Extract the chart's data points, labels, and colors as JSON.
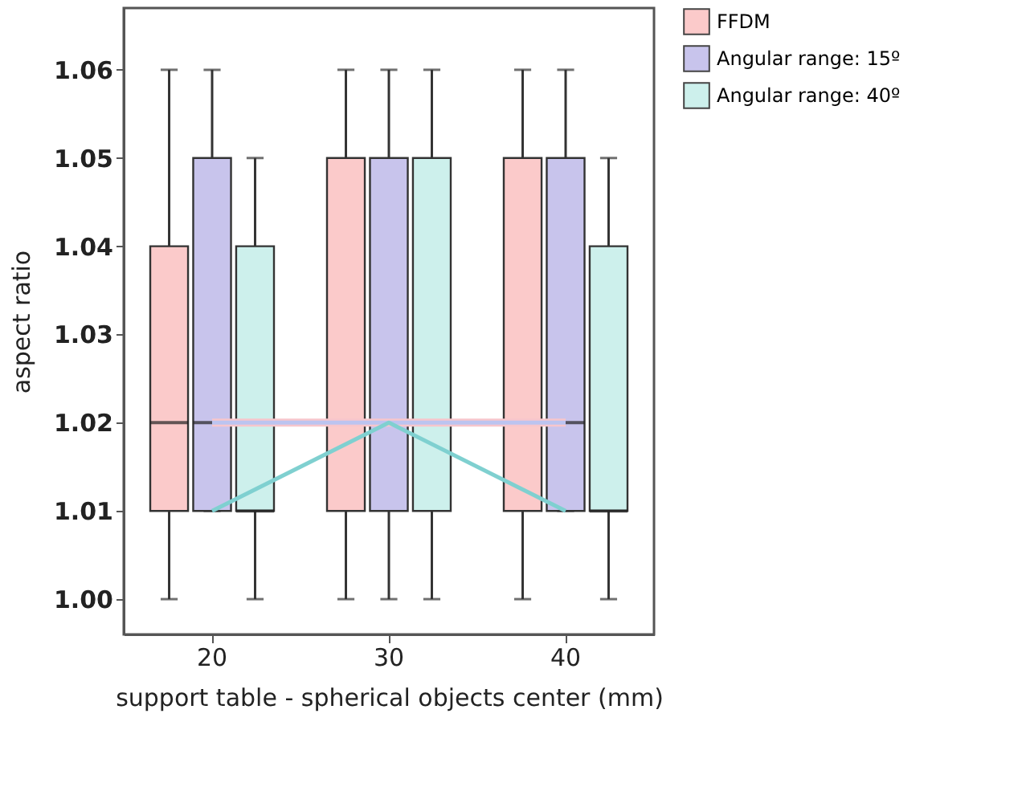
{
  "chart_data": {
    "type": "box",
    "xlabel": "support table - spherical objects center (mm)",
    "ylabel": "aspect ratio",
    "categories": [
      "20",
      "30",
      "40"
    ],
    "ylim": [
      0.996,
      1.067
    ],
    "yticks": [
      {
        "value": 1.0,
        "label": "1.00"
      },
      {
        "value": 1.01,
        "label": "1.01"
      },
      {
        "value": 1.02,
        "label": "1.02"
      },
      {
        "value": 1.03,
        "label": "1.03"
      },
      {
        "value": 1.04,
        "label": "1.04"
      },
      {
        "value": 1.05,
        "label": "1.05"
      },
      {
        "value": 1.06,
        "label": "1.06"
      }
    ],
    "grid": false,
    "legend": "top right",
    "series": [
      {
        "name": "FFDM",
        "color": "#fbcaca",
        "boxes": [
          {
            "low": 1.0,
            "q1": 1.01,
            "median": 1.02,
            "q3": 1.04,
            "high": 1.06
          },
          {
            "low": 1.0,
            "q1": 1.01,
            "median": 1.02,
            "q3": 1.05,
            "high": 1.06
          },
          {
            "low": 1.0,
            "q1": 1.01,
            "median": 1.02,
            "q3": 1.05,
            "high": 1.06
          }
        ]
      },
      {
        "name": "Angular range: 15º",
        "color": "#c8c4ec",
        "boxes": [
          {
            "low": 1.01,
            "q1": 1.01,
            "median": 1.02,
            "q3": 1.05,
            "high": 1.06
          },
          {
            "low": 1.0,
            "q1": 1.01,
            "median": 1.02,
            "q3": 1.05,
            "high": 1.06
          },
          {
            "low": 1.01,
            "q1": 1.01,
            "median": 1.02,
            "q3": 1.05,
            "high": 1.06
          }
        ]
      },
      {
        "name": "Angular range: 40º",
        "color": "#cdf0ec",
        "boxes": [
          {
            "low": 1.0,
            "q1": 1.01,
            "median": 1.01,
            "q3": 1.04,
            "high": 1.05
          },
          {
            "low": 1.0,
            "q1": 1.01,
            "median": 1.02,
            "q3": 1.05,
            "high": 1.06
          },
          {
            "low": 1.0,
            "q1": 1.01,
            "median": 1.01,
            "q3": 1.04,
            "high": 1.05
          }
        ]
      },
      {
        "type": "line",
        "color": "#f7c6cc",
        "values": [
          1.02,
          1.02,
          1.02
        ]
      },
      {
        "type": "line",
        "color": "#bcc4f0",
        "values": [
          1.02,
          1.02,
          1.02
        ]
      },
      {
        "type": "line",
        "color": "#7fd0d0",
        "values": [
          1.01,
          1.02,
          1.01
        ]
      }
    ]
  }
}
